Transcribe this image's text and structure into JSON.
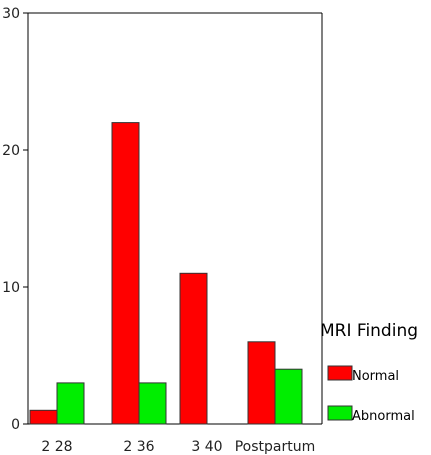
{
  "chart_data": {
    "type": "bar",
    "categories": [
      "2 28",
      "2 36",
      "3 40",
      "Postpartum"
    ],
    "series": [
      {
        "name": "Normal",
        "values": [
          1,
          22,
          11,
          6
        ],
        "color": "#ff0000"
      },
      {
        "name": "Abnormal",
        "values": [
          3,
          3,
          0,
          4
        ],
        "color": "#00ee00"
      }
    ],
    "ylim": [
      0,
      30
    ],
    "yticks": [
      "0",
      "10",
      "20",
      "30"
    ],
    "legend": {
      "title": "MRI Finding",
      "position": "right"
    },
    "grid": false
  }
}
